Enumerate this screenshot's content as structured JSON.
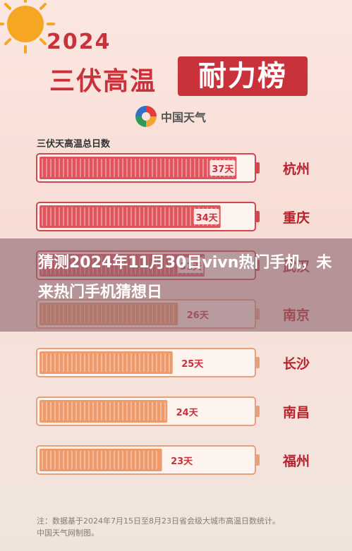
{
  "overlay_title": "猜测2024年11月30日vivn热门手机，未来热门手机猜想日",
  "poster": {
    "year": "2024",
    "title_part1": "三伏高温",
    "title_part2": "耐力榜",
    "logo_text": "中国天气"
  },
  "footnote": {
    "line1": "注：数据基于2024年7月15日至8月23日省会级大城市高温日数统计。",
    "line2": "中国天气网制图。"
  },
  "colors": {
    "accent_red": "#c9313b",
    "bar_hot": "#e0555d",
    "bar_warm": "#ef9a6a"
  },
  "chart_data": {
    "type": "bar",
    "orientation": "horizontal",
    "title": "三伏天高温总日数",
    "unit": "天",
    "max": 40,
    "categories": [
      "杭州",
      "重庆",
      "武汉",
      "南京",
      "长沙",
      "南昌",
      "福州"
    ],
    "values": [
      37,
      34,
      31,
      26,
      25,
      24,
      23
    ],
    "value_labels": [
      "37天",
      "34天",
      "31天",
      "26天",
      "25天",
      "24天",
      "23天"
    ]
  }
}
